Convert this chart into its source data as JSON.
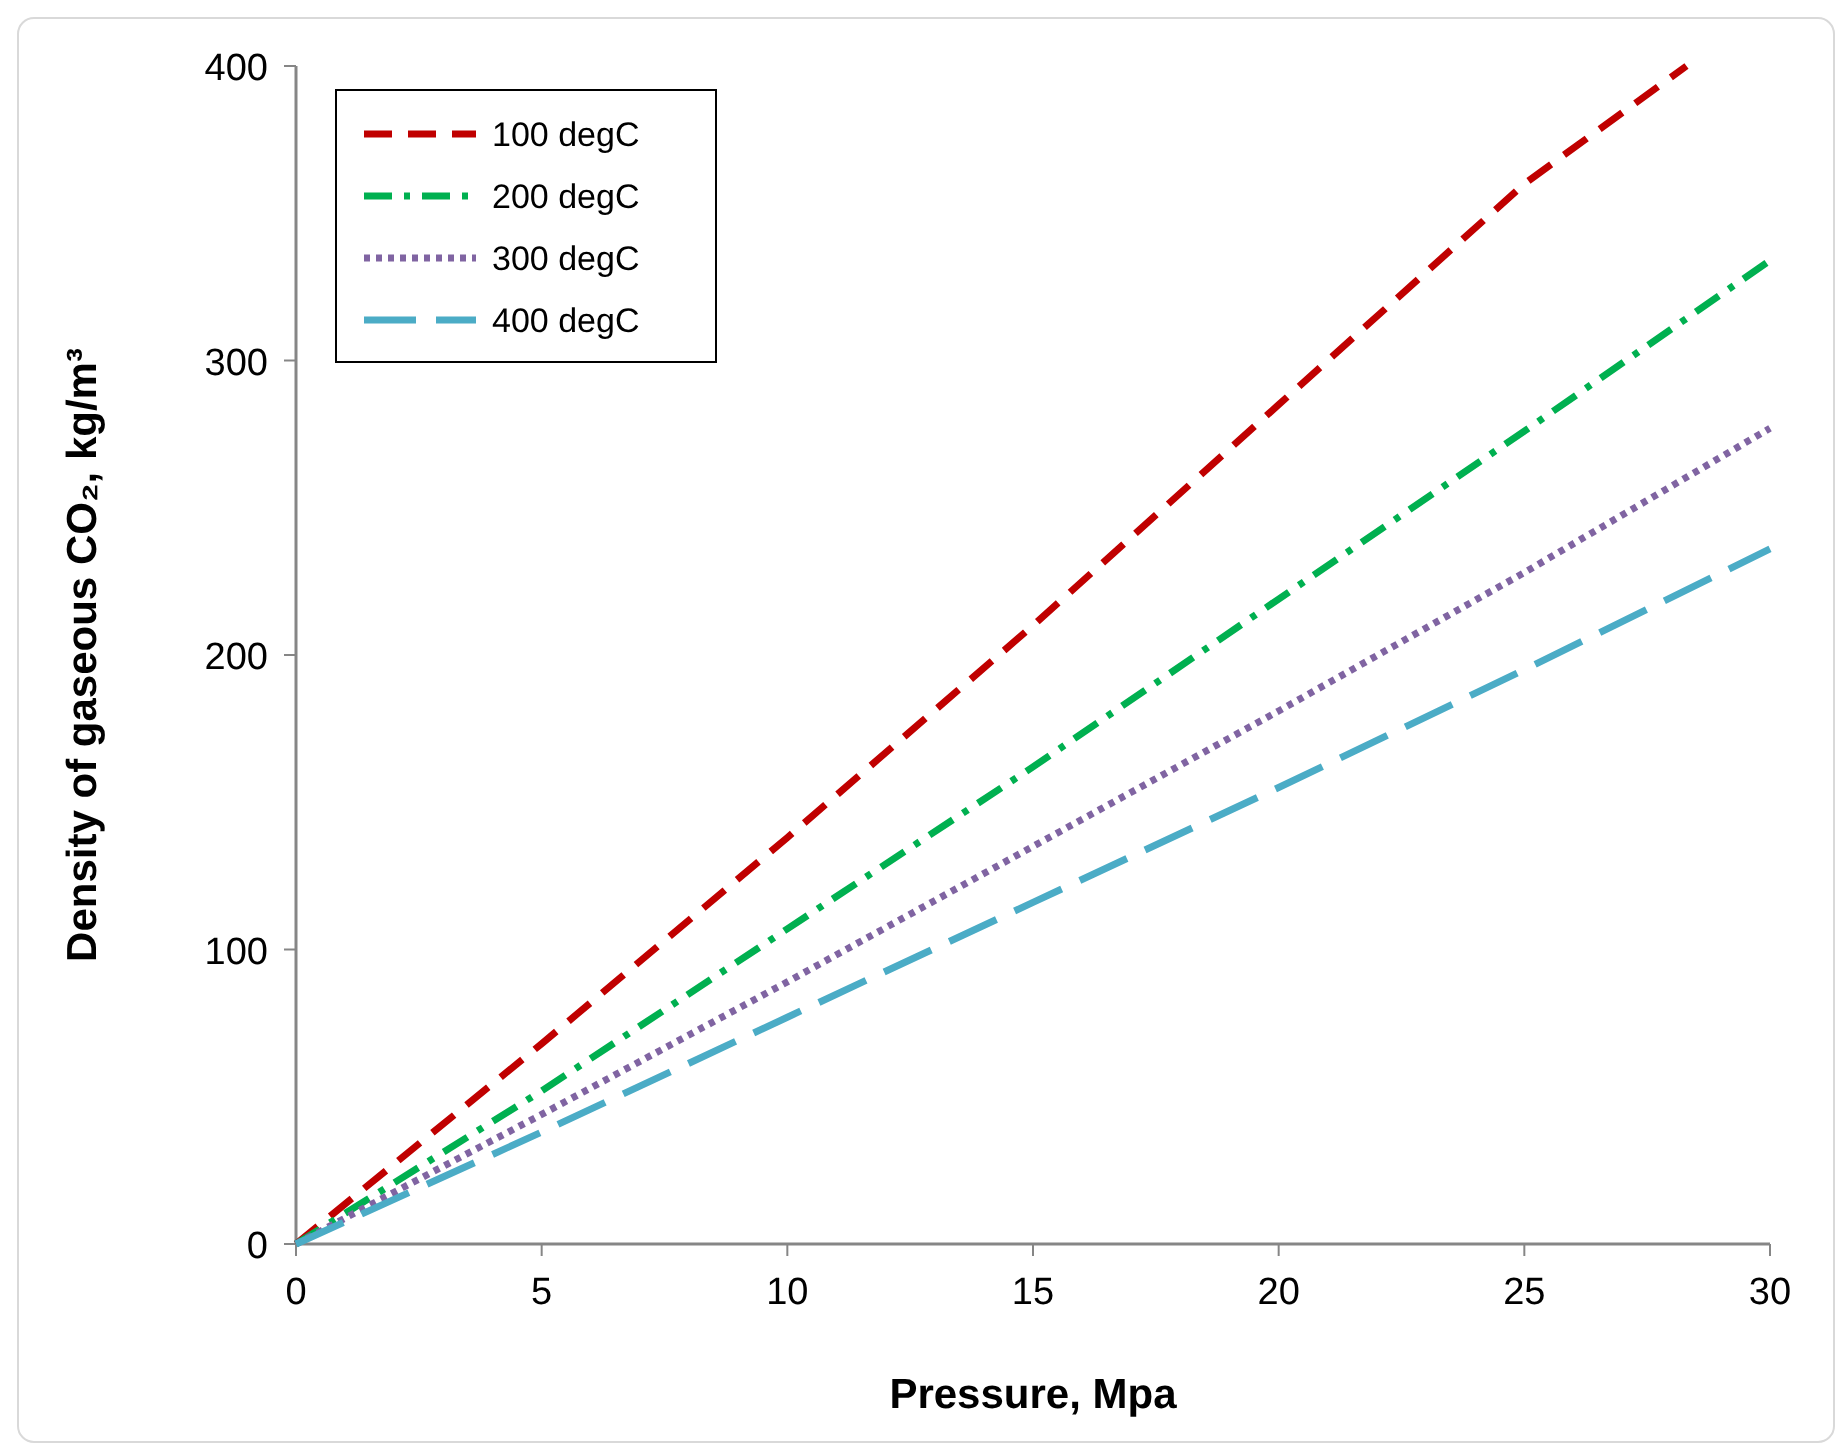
{
  "chart_data": {
    "type": "line",
    "xlabel": "Pressure, Mpa",
    "ylabel": "Density of gaseous CO₂, kg/m³",
    "xlim": [
      0,
      30
    ],
    "ylim": [
      0,
      400
    ],
    "xticks": [
      0,
      5,
      10,
      15,
      20,
      25,
      30
    ],
    "yticks": [
      0,
      100,
      200,
      300,
      400
    ],
    "grid": false,
    "legend": "top left",
    "marker": "none",
    "series": [
      {
        "name": "100 degC",
        "color": "#c00000",
        "line_style": "dashed",
        "x": [
          0,
          5,
          10,
          15,
          20,
          25,
          28.3
        ],
        "values": [
          0,
          68,
          138,
          210,
          285,
          360,
          400
        ]
      },
      {
        "name": "200 degC",
        "color": "#00b050",
        "line_style": "dashdot",
        "x": [
          0,
          5,
          10,
          15,
          20,
          25,
          30
        ],
        "values": [
          0,
          52,
          107,
          162,
          219,
          276,
          334
        ]
      },
      {
        "name": "300 degC",
        "color": "#8064a2",
        "line_style": "dotted",
        "x": [
          0,
          5,
          10,
          15,
          20,
          25,
          30
        ],
        "values": [
          0,
          44,
          89,
          135,
          181,
          228,
          277
        ]
      },
      {
        "name": "400 degC",
        "color": "#4bacc6",
        "line_style": "longdash",
        "x": [
          0,
          5,
          10,
          15,
          20,
          25,
          30
        ],
        "values": [
          0,
          38,
          77,
          116,
          155,
          195,
          236
        ]
      }
    ]
  }
}
